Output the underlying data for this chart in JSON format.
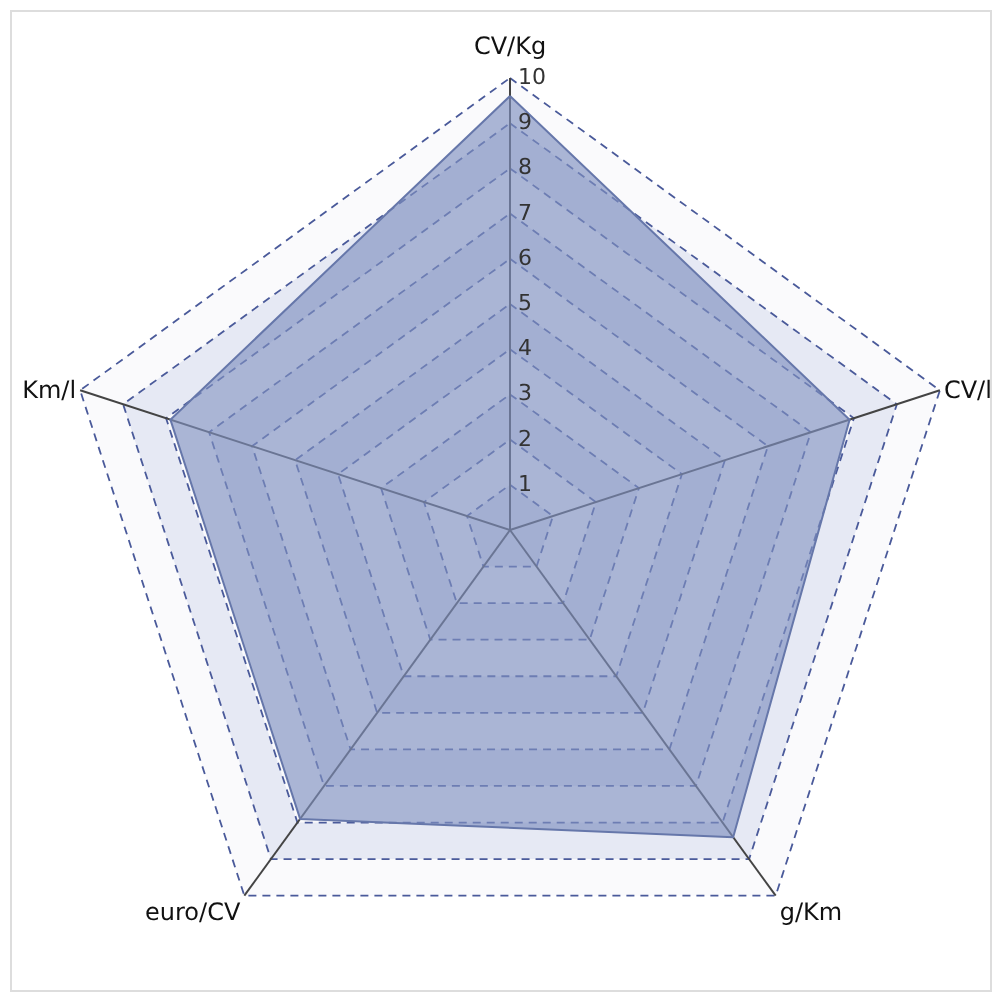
{
  "chart_data": {
    "type": "radar",
    "categories": [
      "CV/Kg",
      "CV/l",
      "g/Km",
      "euro/CV",
      "Km/l"
    ],
    "series": [
      {
        "color": "#7f91c0",
        "values": [
          9.6,
          7.9,
          8.4,
          7.9,
          7.9
        ]
      }
    ],
    "ylim": [
      0,
      10
    ],
    "yticks": [
      1,
      2,
      3,
      4,
      5,
      6,
      7,
      8,
      9,
      10
    ],
    "grid": true,
    "marker": "none",
    "line_style": "solid"
  }
}
